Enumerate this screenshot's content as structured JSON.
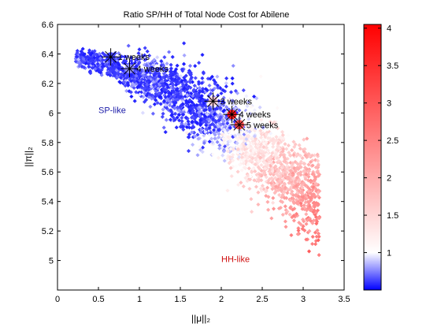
{
  "chart_data": {
    "type": "scatter",
    "title": "Ratio SP/HH of Total Node Cost for Abilene",
    "xlabel": "||μ||₂",
    "ylabel": "||π||₂",
    "xlim": [
      0,
      3.5
    ],
    "ylim": [
      4.8,
      6.6
    ],
    "xticks": [
      0,
      0.5,
      1,
      1.5,
      2,
      2.5,
      3,
      3.5
    ],
    "xtick_labels": [
      "0",
      "0.5",
      "1",
      "1.5",
      "2",
      "2.5",
      "3",
      "3.5"
    ],
    "yticks": [
      5,
      5.2,
      5.4,
      5.6,
      5.8,
      6,
      6.2,
      6.4,
      6.6
    ],
    "ytick_labels": [
      "5",
      "5.2",
      "5.4",
      "5.6",
      "5.8",
      "6",
      "6.2",
      "6.4",
      "6.6"
    ],
    "grid": false,
    "colorbar": {
      "position": "right",
      "range": [
        0.5,
        4.05
      ],
      "ticks": [
        1,
        1.5,
        2,
        2.5,
        3,
        3.5,
        4
      ],
      "tick_labels": [
        "1",
        "1.5",
        "2",
        "2.5",
        "3",
        "3.5",
        "4"
      ],
      "colors": {
        "low": "#0000ff",
        "mid": "#ffffff",
        "high": "#ff0000"
      },
      "mid_value": 1
    },
    "point_cloud": {
      "description_band": "dense band of points from (0.2, 6.4) curving down to (3.2, 4.9)",
      "approx_count": 2600
    },
    "annotations": [
      {
        "label": "1 weeks",
        "x": 0.65,
        "y": 6.38,
        "ratio": 0.6
      },
      {
        "label": "4 weeks",
        "x": 0.88,
        "y": 6.3,
        "ratio": 0.8
      },
      {
        "label": "3 weeks",
        "x": 1.9,
        "y": 6.08,
        "ratio": 1.6
      },
      {
        "label": "4 weeks",
        "x": 2.13,
        "y": 5.99,
        "ratio": 4.0
      },
      {
        "label": "5 weeks",
        "x": 2.22,
        "y": 5.92,
        "ratio": 3.4
      }
    ],
    "region_labels": [
      {
        "label": "SP-like",
        "x": 0.5,
        "y": 6.0,
        "color": "#1a1aa8"
      },
      {
        "label": "HH-like",
        "x": 2.0,
        "y": 4.99,
        "color": "#d01010"
      }
    ]
  }
}
